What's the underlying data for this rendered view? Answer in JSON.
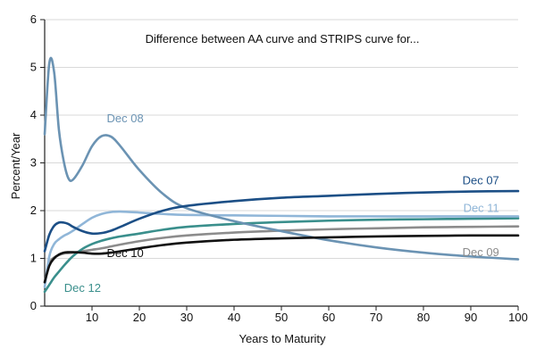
{
  "chart_data": {
    "type": "line",
    "title": "Difference between AA curve and STRIPS curve for...",
    "xlabel": "Years to Maturity",
    "ylabel": "Percent/Year",
    "xlim": [
      0,
      100
    ],
    "ylim": [
      0,
      6
    ],
    "xticks": [
      10,
      20,
      30,
      40,
      50,
      60,
      70,
      80,
      90,
      100
    ],
    "yticks": [
      0,
      1,
      2,
      3,
      4,
      5,
      6
    ],
    "grid": "horizontal",
    "series": [
      {
        "name": "Dec 08",
        "color": "#6b93b3",
        "x": [
          0,
          1,
          2,
          3,
          4,
          5,
          6,
          8,
          10,
          12,
          14,
          16,
          20,
          25,
          30,
          40,
          50,
          60,
          70,
          80,
          90,
          100
        ],
        "values": [
          3.6,
          5.1,
          4.9,
          3.7,
          3.05,
          2.68,
          2.65,
          2.95,
          3.35,
          3.56,
          3.55,
          3.35,
          2.85,
          2.35,
          2.05,
          1.78,
          1.57,
          1.38,
          1.23,
          1.12,
          1.04,
          0.98
        ]
      },
      {
        "name": "Dec 07",
        "color": "#1c4f86",
        "x": [
          0,
          1,
          2,
          3,
          4,
          5,
          6,
          8,
          10,
          12,
          14,
          16,
          20,
          25,
          30,
          40,
          50,
          60,
          70,
          80,
          90,
          100
        ],
        "values": [
          1.15,
          1.5,
          1.68,
          1.75,
          1.75,
          1.72,
          1.66,
          1.57,
          1.52,
          1.53,
          1.58,
          1.66,
          1.83,
          2.0,
          2.1,
          2.2,
          2.27,
          2.31,
          2.35,
          2.38,
          2.4,
          2.41
        ]
      },
      {
        "name": "Dec 11",
        "color": "#90b6d8",
        "x": [
          0,
          1,
          2,
          3,
          4,
          5,
          6,
          8,
          10,
          12,
          14,
          16,
          20,
          25,
          30,
          40,
          50,
          60,
          70,
          80,
          90,
          100
        ],
        "values": [
          0.4,
          1.05,
          1.3,
          1.4,
          1.47,
          1.52,
          1.58,
          1.72,
          1.85,
          1.93,
          1.97,
          1.98,
          1.96,
          1.93,
          1.91,
          1.9,
          1.89,
          1.88,
          1.88,
          1.88,
          1.88,
          1.88
        ]
      },
      {
        "name": "Dec 12",
        "color": "#3a8f8c",
        "x": [
          0,
          1,
          2,
          3,
          4,
          5,
          6,
          8,
          10,
          12,
          14,
          16,
          20,
          25,
          30,
          40,
          50,
          60,
          70,
          80,
          90,
          100
        ],
        "values": [
          0.3,
          0.45,
          0.6,
          0.72,
          0.84,
          0.95,
          1.05,
          1.2,
          1.3,
          1.37,
          1.42,
          1.46,
          1.52,
          1.6,
          1.66,
          1.72,
          1.76,
          1.79,
          1.81,
          1.82,
          1.83,
          1.84
        ]
      },
      {
        "name": "Dec 09",
        "color": "#8c8c8c",
        "x": [
          0,
          1,
          2,
          3,
          4,
          5,
          6,
          8,
          10,
          12,
          14,
          16,
          20,
          25,
          30,
          40,
          50,
          60,
          70,
          80,
          90,
          100
        ],
        "values": [
          0.5,
          0.9,
          1.02,
          1.07,
          1.1,
          1.11,
          1.12,
          1.15,
          1.18,
          1.21,
          1.25,
          1.29,
          1.36,
          1.43,
          1.48,
          1.54,
          1.58,
          1.61,
          1.63,
          1.65,
          1.66,
          1.67
        ]
      },
      {
        "name": "Dec 10",
        "color": "#111111",
        "x": [
          0,
          1,
          2,
          3,
          4,
          5,
          6,
          8,
          10,
          12,
          14,
          16,
          20,
          25,
          30,
          40,
          50,
          60,
          70,
          80,
          90,
          100
        ],
        "values": [
          0.5,
          0.85,
          1.0,
          1.08,
          1.12,
          1.13,
          1.13,
          1.12,
          1.1,
          1.1,
          1.12,
          1.15,
          1.21,
          1.28,
          1.33,
          1.39,
          1.42,
          1.44,
          1.46,
          1.47,
          1.48,
          1.48
        ]
      }
    ],
    "labels": [
      {
        "series": "Dec 08",
        "text": "Dec 08",
        "x": 17,
        "y": 3.85,
        "anchor": "middle"
      },
      {
        "series": "Dec 07",
        "text": "Dec 07",
        "x": 96,
        "y": 2.55,
        "anchor": "end"
      },
      {
        "series": "Dec 11",
        "text": "Dec 11",
        "x": 96,
        "y": 1.97,
        "anchor": "end"
      },
      {
        "series": "Dec 09",
        "text": "Dec 09",
        "x": 96,
        "y": 1.05,
        "anchor": "end"
      },
      {
        "series": "Dec 10",
        "text": "Dec 10",
        "x": 17,
        "y": 1.03,
        "anchor": "middle"
      },
      {
        "series": "Dec 12",
        "text": "Dec 12",
        "x": 8,
        "y": 0.3,
        "anchor": "middle"
      }
    ]
  }
}
